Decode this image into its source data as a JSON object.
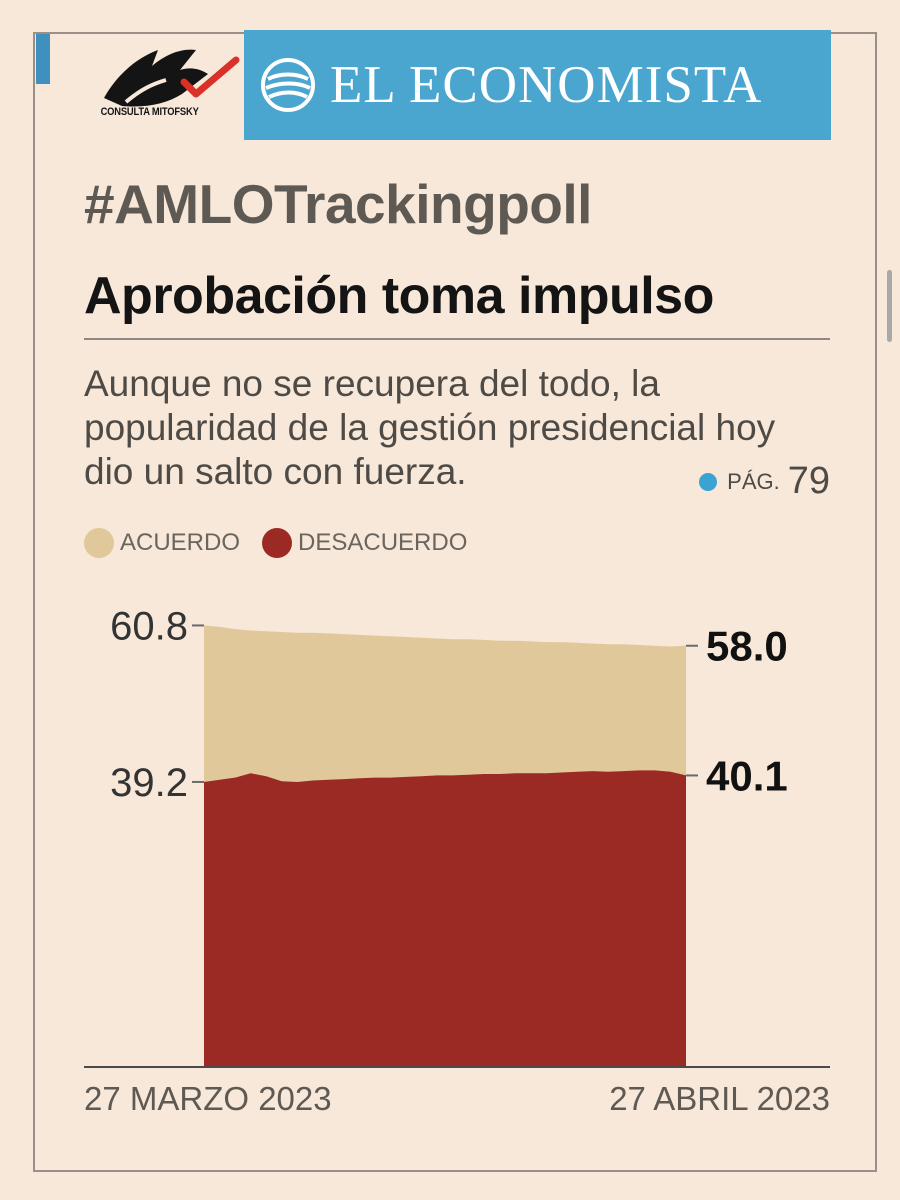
{
  "brand": {
    "consulta_caption": "CONSULTA MITOFSKY",
    "newspaper_name": "EL ECONOMISTA",
    "accent_color": "#4aa5cf"
  },
  "hashtag": "#AMLOTrackingpoll",
  "headline": "Aprobación toma impulso",
  "dek": "Aunque no se recupera del todo, la popularidad de la gestión presidencial hoy dio un salto con fuerza.",
  "page_ref": {
    "label": "PÁG.",
    "number": "79",
    "icon": "blue-dot-icon"
  },
  "chart_data": {
    "type": "area",
    "x_start_label": "27 MARZO 2023",
    "x_end_label": "27 ABRIL 2023",
    "x": [
      "2023-03-27",
      "2023-03-28",
      "2023-03-29",
      "2023-03-30",
      "2023-03-31",
      "2023-04-01",
      "2023-04-02",
      "2023-04-03",
      "2023-04-04",
      "2023-04-05",
      "2023-04-06",
      "2023-04-07",
      "2023-04-08",
      "2023-04-09",
      "2023-04-10",
      "2023-04-11",
      "2023-04-12",
      "2023-04-13",
      "2023-04-14",
      "2023-04-15",
      "2023-04-16",
      "2023-04-17",
      "2023-04-18",
      "2023-04-19",
      "2023-04-20",
      "2023-04-21",
      "2023-04-22",
      "2023-04-23",
      "2023-04-24",
      "2023-04-25",
      "2023-04-26",
      "2023-04-27"
    ],
    "series": [
      {
        "name": "ACUERDO",
        "color": "#e1c89b",
        "values": [
          60.8,
          60.6,
          60.3,
          60.1,
          60.0,
          59.9,
          59.8,
          59.8,
          59.7,
          59.6,
          59.5,
          59.4,
          59.3,
          59.2,
          59.1,
          59.0,
          58.9,
          58.9,
          58.8,
          58.7,
          58.7,
          58.6,
          58.5,
          58.5,
          58.4,
          58.3,
          58.2,
          58.2,
          58.1,
          58.0,
          57.9,
          58.0
        ]
      },
      {
        "name": "DESACUERDO",
        "color": "#9b2a24",
        "values": [
          39.2,
          39.5,
          39.8,
          40.4,
          40.0,
          39.3,
          39.2,
          39.4,
          39.5,
          39.6,
          39.7,
          39.8,
          39.8,
          39.9,
          40.0,
          40.1,
          40.1,
          40.2,
          40.3,
          40.3,
          40.4,
          40.4,
          40.4,
          40.5,
          40.6,
          40.7,
          40.6,
          40.7,
          40.8,
          40.8,
          40.6,
          40.1
        ]
      }
    ],
    "start_labels": [
      "60.8",
      "39.2"
    ],
    "end_labels": [
      "58.0",
      "40.1"
    ],
    "ylim": [
      0,
      61
    ]
  }
}
